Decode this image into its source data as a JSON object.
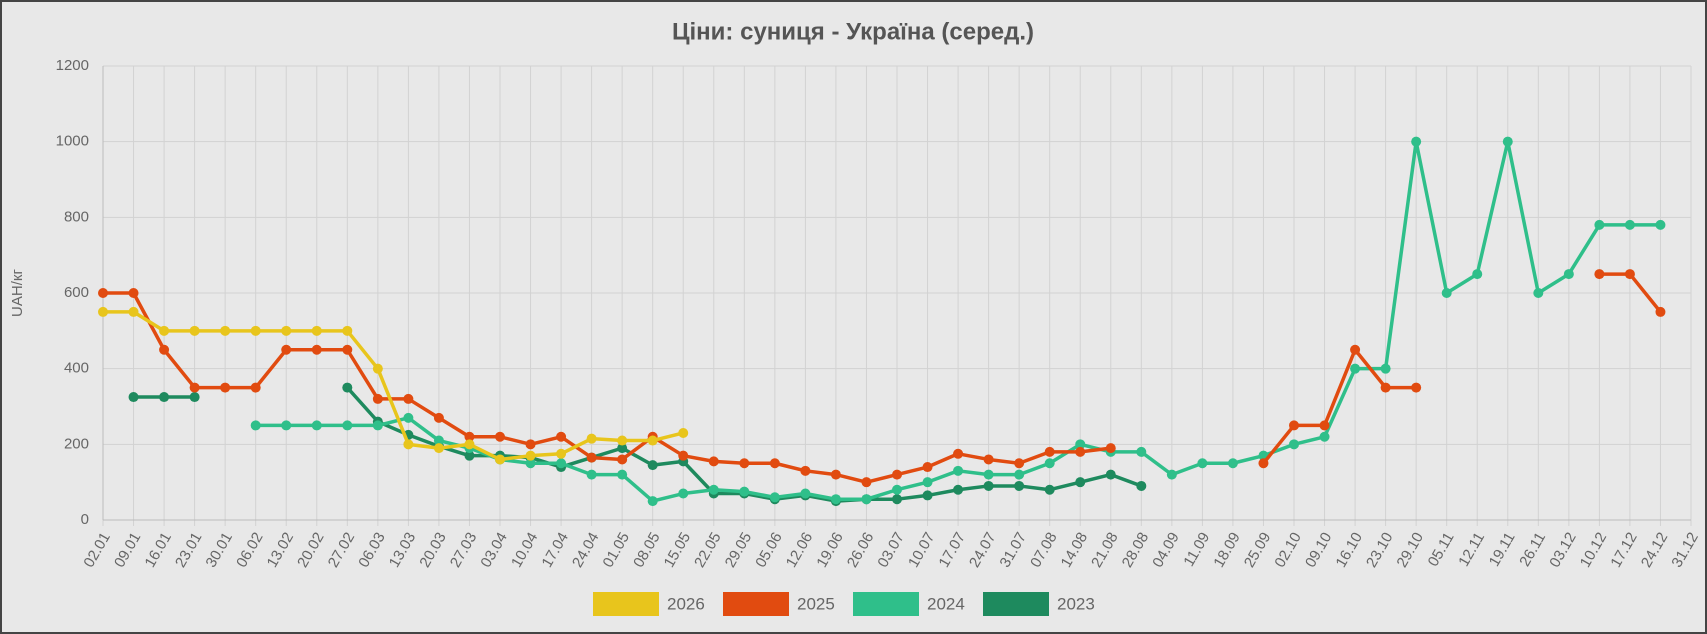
{
  "chart_data": {
    "type": "line",
    "title": "Ціни: суниця - Україна (серед.)",
    "y_label": "UAH/кг",
    "categories": [
      "02.01",
      "09.01",
      "16.01",
      "23.01",
      "30.01",
      "06.02",
      "13.02",
      "20.02",
      "27.02",
      "06.03",
      "13.03",
      "20.03",
      "27.03",
      "03.04",
      "10.04",
      "17.04",
      "24.04",
      "01.05",
      "08.05",
      "15.05",
      "22.05",
      "29.05",
      "05.06",
      "12.06",
      "19.06",
      "26.06",
      "03.07",
      "10.07",
      "17.07",
      "24.07",
      "31.07",
      "07.08",
      "14.08",
      "21.08",
      "28.08",
      "04.09",
      "11.09",
      "18.09",
      "25.09",
      "02.10",
      "09.10",
      "16.10",
      "23.10",
      "29.10",
      "05.11",
      "12.11",
      "19.11",
      "26.11",
      "03.12",
      "10.12",
      "17.12",
      "24.12",
      "31.12"
    ],
    "series": [
      {
        "name": "2026",
        "color": "#e8c51c",
        "values": [
          550,
          550,
          500,
          500,
          500,
          500,
          500,
          500,
          500,
          400,
          200,
          190,
          200,
          160,
          170,
          175,
          215,
          210,
          210,
          230,
          null,
          null,
          null,
          null,
          null,
          null,
          null,
          null,
          null,
          null,
          null,
          null,
          null,
          null,
          null,
          null,
          null,
          null,
          null,
          null,
          null,
          null,
          null,
          null,
          null,
          null,
          null,
          null,
          null,
          null,
          null,
          null,
          null
        ]
      },
      {
        "name": "2025",
        "color": "#e14b10",
        "values": [
          600,
          600,
          450,
          350,
          350,
          350,
          450,
          450,
          450,
          320,
          320,
          270,
          220,
          220,
          200,
          220,
          165,
          160,
          220,
          170,
          155,
          150,
          150,
          130,
          120,
          100,
          120,
          140,
          175,
          160,
          150,
          180,
          180,
          190,
          null,
          null,
          null,
          null,
          150,
          250,
          250,
          450,
          350,
          350,
          null,
          null,
          null,
          null,
          null,
          650,
          650,
          550,
          null
        ]
      },
      {
        "name": "2024",
        "color": "#2fbf8a",
        "values": [
          null,
          null,
          null,
          null,
          null,
          250,
          250,
          250,
          250,
          250,
          270,
          210,
          190,
          160,
          150,
          150,
          120,
          120,
          50,
          70,
          80,
          75,
          60,
          70,
          55,
          55,
          80,
          100,
          130,
          120,
          120,
          150,
          200,
          180,
          180,
          120,
          150,
          150,
          170,
          200,
          220,
          400,
          400,
          1000,
          600,
          650,
          1000,
          600,
          650,
          780,
          780,
          780,
          null
        ]
      },
      {
        "name": "2023",
        "color": "#1e8a5e",
        "values": [
          null,
          325,
          325,
          325,
          null,
          null,
          null,
          null,
          350,
          260,
          225,
          195,
          170,
          170,
          165,
          140,
          165,
          190,
          145,
          155,
          70,
          70,
          55,
          65,
          50,
          55,
          55,
          65,
          80,
          90,
          90,
          80,
          100,
          120,
          90,
          null,
          null,
          null,
          null,
          null,
          null,
          null,
          null,
          null,
          null,
          null,
          null,
          null,
          null,
          null,
          null,
          null,
          null
        ]
      }
    ],
    "ylim": [
      0,
      1200
    ],
    "yticks": [
      0,
      200,
      400,
      600,
      800,
      1000,
      1200
    ],
    "grid": true,
    "legend": "bottom"
  }
}
